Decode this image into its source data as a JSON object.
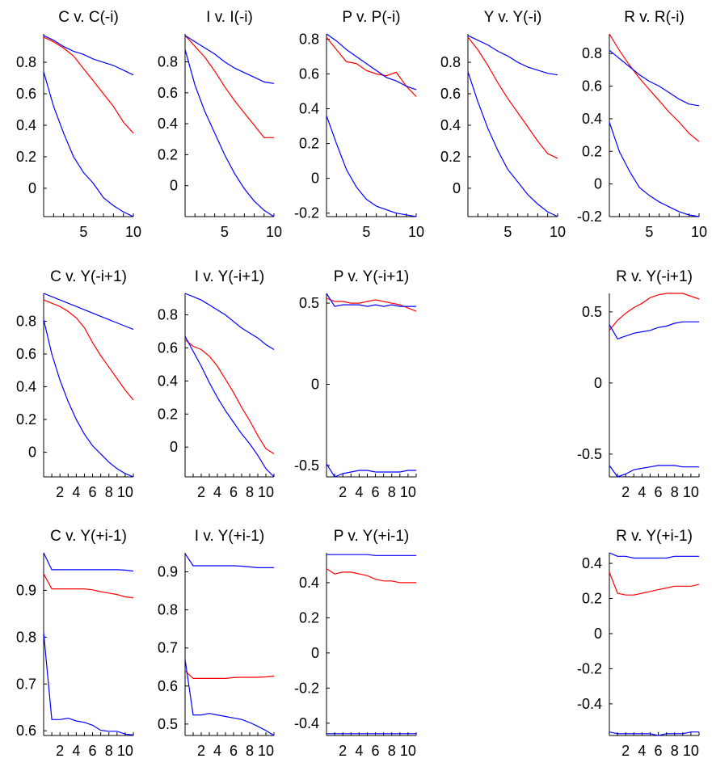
{
  "colors": {
    "series_red": "#ff0000",
    "series_blue": "#0000ff",
    "axis": "#000000"
  },
  "chart_data": [
    {
      "type": "line",
      "title": "C v. C(-i)",
      "xlim": [
        1,
        10
      ],
      "xticks": [
        "5",
        "10"
      ],
      "ylim": [
        -0.18,
        0.98
      ],
      "yticks": [
        "0",
        "0.2",
        "0.4",
        "0.6",
        "0.8"
      ],
      "x": [
        1,
        2,
        3,
        4,
        5,
        6,
        7,
        8,
        9,
        10
      ],
      "series": [
        {
          "color": "#ff0000",
          "values": [
            0.96,
            0.93,
            0.89,
            0.84,
            0.76,
            0.68,
            0.6,
            0.52,
            0.42,
            0.35
          ]
        },
        {
          "color": "#0000ff",
          "values": [
            0.97,
            0.94,
            0.9,
            0.87,
            0.85,
            0.82,
            0.8,
            0.78,
            0.75,
            0.72
          ]
        },
        {
          "color": "#0000ff",
          "values": [
            0.74,
            0.52,
            0.35,
            0.2,
            0.1,
            0.03,
            -0.06,
            -0.11,
            -0.15,
            -0.18
          ]
        }
      ]
    },
    {
      "type": "line",
      "title": "I v. I(-i)",
      "xlim": [
        1,
        10
      ],
      "xticks": [
        "5",
        "10"
      ],
      "ylim": [
        -0.2,
        0.98
      ],
      "yticks": [
        "0",
        "0.2",
        "0.4",
        "0.6",
        "0.8"
      ],
      "x": [
        1,
        2,
        3,
        4,
        5,
        6,
        7,
        8,
        9,
        10
      ],
      "series": [
        {
          "color": "#ff0000",
          "values": [
            0.97,
            0.9,
            0.83,
            0.74,
            0.64,
            0.55,
            0.47,
            0.39,
            0.31,
            0.31
          ]
        },
        {
          "color": "#0000ff",
          "values": [
            0.97,
            0.93,
            0.89,
            0.85,
            0.8,
            0.76,
            0.73,
            0.7,
            0.67,
            0.66
          ]
        },
        {
          "color": "#0000ff",
          "values": [
            0.88,
            0.65,
            0.48,
            0.34,
            0.2,
            0.08,
            -0.02,
            -0.1,
            -0.16,
            -0.2
          ]
        }
      ]
    },
    {
      "type": "line",
      "title": "P v. P(-i)",
      "xlim": [
        1,
        10
      ],
      "xticks": [
        "5",
        "10"
      ],
      "ylim": [
        -0.22,
        0.83
      ],
      "yticks": [
        "-0.2",
        "0",
        "0.2",
        "0.4",
        "0.6",
        "0.8"
      ],
      "x": [
        1,
        2,
        3,
        4,
        5,
        6,
        7,
        8,
        9,
        10
      ],
      "series": [
        {
          "color": "#ff0000",
          "values": [
            0.81,
            0.74,
            0.67,
            0.66,
            0.62,
            0.6,
            0.59,
            0.61,
            0.53,
            0.47
          ]
        },
        {
          "color": "#0000ff",
          "values": [
            0.83,
            0.79,
            0.74,
            0.7,
            0.66,
            0.62,
            0.58,
            0.56,
            0.53,
            0.51
          ]
        },
        {
          "color": "#0000ff",
          "values": [
            0.36,
            0.2,
            0.05,
            -0.05,
            -0.12,
            -0.16,
            -0.18,
            -0.2,
            -0.21,
            -0.22
          ]
        }
      ]
    },
    {
      "type": "line",
      "title": "Y v. Y(-i)",
      "xlim": [
        1,
        10
      ],
      "xticks": [
        "5",
        "10"
      ],
      "ylim": [
        -0.18,
        0.98
      ],
      "yticks": [
        "0",
        "0.2",
        "0.4",
        "0.6",
        "0.8"
      ],
      "x": [
        1,
        2,
        3,
        4,
        5,
        6,
        7,
        8,
        9,
        10
      ],
      "series": [
        {
          "color": "#ff0000",
          "values": [
            0.96,
            0.88,
            0.78,
            0.67,
            0.57,
            0.48,
            0.39,
            0.3,
            0.22,
            0.19
          ]
        },
        {
          "color": "#0000ff",
          "values": [
            0.97,
            0.94,
            0.91,
            0.87,
            0.84,
            0.8,
            0.77,
            0.75,
            0.73,
            0.72
          ]
        },
        {
          "color": "#0000ff",
          "values": [
            0.74,
            0.55,
            0.38,
            0.24,
            0.12,
            0.04,
            -0.04,
            -0.1,
            -0.15,
            -0.18
          ]
        }
      ]
    },
    {
      "type": "line",
      "title": "R v. R(-i)",
      "xlim": [
        1,
        10
      ],
      "xticks": [
        "5",
        "10"
      ],
      "ylim": [
        -0.2,
        0.92
      ],
      "yticks": [
        "-0.2",
        "0",
        "0.2",
        "0.4",
        "0.6",
        "0.8"
      ],
      "x": [
        1,
        2,
        3,
        4,
        5,
        6,
        7,
        8,
        9,
        10
      ],
      "series": [
        {
          "color": "#ff0000",
          "values": [
            0.92,
            0.82,
            0.73,
            0.65,
            0.58,
            0.51,
            0.44,
            0.38,
            0.31,
            0.26
          ]
        },
        {
          "color": "#0000ff",
          "values": [
            0.82,
            0.77,
            0.72,
            0.67,
            0.63,
            0.6,
            0.56,
            0.52,
            0.49,
            0.48
          ]
        },
        {
          "color": "#0000ff",
          "values": [
            0.38,
            0.2,
            0.08,
            -0.02,
            -0.07,
            -0.11,
            -0.14,
            -0.17,
            -0.19,
            -0.2
          ]
        }
      ]
    },
    {
      "type": "line",
      "title": "C v. Y(-i+1)",
      "xlim": [
        0,
        11
      ],
      "xticks": [
        "2",
        "4",
        "6",
        "8",
        "10"
      ],
      "ylim": [
        -0.15,
        0.97
      ],
      "yticks": [
        "0",
        "0.2",
        "0.4",
        "0.6",
        "0.8"
      ],
      "x": [
        0,
        1,
        2,
        3,
        4,
        5,
        6,
        7,
        8,
        9,
        10,
        11
      ],
      "series": [
        {
          "color": "#ff0000",
          "values": [
            0.93,
            0.91,
            0.89,
            0.86,
            0.82,
            0.76,
            0.67,
            0.59,
            0.52,
            0.45,
            0.38,
            0.32
          ]
        },
        {
          "color": "#0000ff",
          "values": [
            0.97,
            0.95,
            0.93,
            0.91,
            0.89,
            0.87,
            0.85,
            0.83,
            0.81,
            0.79,
            0.77,
            0.75
          ]
        },
        {
          "color": "#0000ff",
          "values": [
            0.81,
            0.6,
            0.44,
            0.31,
            0.2,
            0.11,
            0.04,
            -0.01,
            -0.06,
            -0.1,
            -0.13,
            -0.15
          ]
        }
      ]
    },
    {
      "type": "line",
      "title": "I v. Y(-i+1)",
      "xlim": [
        0,
        11
      ],
      "xticks": [
        "2",
        "4",
        "6",
        "8",
        "10"
      ],
      "ylim": [
        -0.18,
        0.93
      ],
      "yticks": [
        "0",
        "0.2",
        "0.4",
        "0.6",
        "0.8"
      ],
      "x": [
        0,
        1,
        2,
        3,
        4,
        5,
        6,
        7,
        8,
        9,
        10,
        11
      ],
      "series": [
        {
          "color": "#ff0000",
          "values": [
            0.65,
            0.61,
            0.59,
            0.55,
            0.49,
            0.41,
            0.33,
            0.24,
            0.16,
            0.07,
            -0.01,
            -0.04
          ]
        },
        {
          "color": "#0000ff",
          "values": [
            0.93,
            0.91,
            0.89,
            0.86,
            0.83,
            0.8,
            0.76,
            0.72,
            0.69,
            0.66,
            0.62,
            0.59
          ]
        },
        {
          "color": "#0000ff",
          "values": [
            0.67,
            0.58,
            0.49,
            0.39,
            0.3,
            0.22,
            0.15,
            0.08,
            0.02,
            -0.05,
            -0.13,
            -0.18
          ]
        }
      ]
    },
    {
      "type": "line",
      "title": "P v. Y(-i+1)",
      "xlim": [
        0,
        11
      ],
      "xticks": [
        "2",
        "4",
        "6",
        "8",
        "10"
      ],
      "ylim": [
        -0.57,
        0.56
      ],
      "yticks": [
        "-0.5",
        "0",
        "0.5"
      ],
      "x": [
        0,
        1,
        2,
        3,
        4,
        5,
        6,
        7,
        8,
        9,
        10,
        11
      ],
      "series": [
        {
          "color": "#ff0000",
          "values": [
            0.53,
            0.51,
            0.51,
            0.5,
            0.5,
            0.51,
            0.52,
            0.51,
            0.5,
            0.49,
            0.47,
            0.45
          ]
        },
        {
          "color": "#0000ff",
          "values": [
            0.56,
            0.48,
            0.49,
            0.49,
            0.49,
            0.48,
            0.49,
            0.48,
            0.49,
            0.48,
            0.48,
            0.48
          ]
        },
        {
          "color": "#0000ff",
          "values": [
            -0.49,
            -0.57,
            -0.55,
            -0.54,
            -0.53,
            -0.53,
            -0.54,
            -0.54,
            -0.54,
            -0.54,
            -0.53,
            -0.53
          ]
        }
      ]
    },
    {
      "type": "line",
      "title": "R v. Y(-i+1)",
      "xlim": [
        0,
        11
      ],
      "xticks": [
        "2",
        "4",
        "6",
        "8",
        "10"
      ],
      "ylim": [
        -0.66,
        0.63
      ],
      "yticks": [
        "-0.5",
        "0",
        "0.5"
      ],
      "x": [
        0,
        1,
        2,
        3,
        4,
        5,
        6,
        7,
        8,
        9,
        10,
        11
      ],
      "series": [
        {
          "color": "#ff0000",
          "values": [
            0.37,
            0.44,
            0.49,
            0.53,
            0.56,
            0.6,
            0.62,
            0.63,
            0.63,
            0.63,
            0.61,
            0.59
          ]
        },
        {
          "color": "#0000ff",
          "values": [
            0.41,
            0.31,
            0.33,
            0.35,
            0.36,
            0.37,
            0.39,
            0.4,
            0.42,
            0.43,
            0.43,
            0.43
          ]
        },
        {
          "color": "#0000ff",
          "values": [
            -0.58,
            -0.66,
            -0.64,
            -0.61,
            -0.6,
            -0.59,
            -0.58,
            -0.58,
            -0.58,
            -0.59,
            -0.59,
            -0.59
          ]
        }
      ]
    },
    {
      "type": "line",
      "title": "C v. Y(+i-1)",
      "xlim": [
        0,
        11
      ],
      "xticks": [
        "2",
        "4",
        "6",
        "8",
        "10"
      ],
      "ylim": [
        0.59,
        0.98
      ],
      "yticks": [
        "0.6",
        "0.7",
        "0.8",
        "0.9"
      ],
      "x": [
        0,
        1,
        2,
        3,
        4,
        5,
        6,
        7,
        8,
        9,
        10,
        11
      ],
      "series": [
        {
          "color": "#ff0000",
          "values": [
            0.935,
            0.903,
            0.903,
            0.903,
            0.903,
            0.903,
            0.901,
            0.897,
            0.894,
            0.891,
            0.886,
            0.884
          ]
        },
        {
          "color": "#0000ff",
          "values": [
            0.98,
            0.944,
            0.944,
            0.944,
            0.944,
            0.944,
            0.944,
            0.944,
            0.944,
            0.944,
            0.943,
            0.941
          ]
        },
        {
          "color": "#0000ff",
          "values": [
            0.81,
            0.624,
            0.624,
            0.627,
            0.621,
            0.618,
            0.612,
            0.601,
            0.599,
            0.599,
            0.593,
            0.591
          ]
        }
      ]
    },
    {
      "type": "line",
      "title": "I v. Y(+i-1)",
      "xlim": [
        0,
        11
      ],
      "xticks": [
        "2",
        "4",
        "6",
        "8",
        "10"
      ],
      "ylim": [
        0.47,
        0.95
      ],
      "yticks": [
        "0.5",
        "0.6",
        "0.7",
        "0.8",
        "0.9"
      ],
      "x": [
        0,
        1,
        2,
        3,
        4,
        5,
        6,
        7,
        8,
        9,
        10,
        11
      ],
      "series": [
        {
          "color": "#ff0000",
          "values": [
            0.64,
            0.62,
            0.62,
            0.62,
            0.62,
            0.62,
            0.622,
            0.623,
            0.623,
            0.623,
            0.624,
            0.626
          ]
        },
        {
          "color": "#0000ff",
          "values": [
            0.948,
            0.916,
            0.916,
            0.916,
            0.916,
            0.916,
            0.916,
            0.915,
            0.913,
            0.911,
            0.911,
            0.911
          ]
        },
        {
          "color": "#0000ff",
          "values": [
            0.67,
            0.524,
            0.524,
            0.528,
            0.524,
            0.52,
            0.516,
            0.512,
            0.504,
            0.494,
            0.483,
            0.47
          ]
        }
      ]
    },
    {
      "type": "line",
      "title": "P v. Y(+i-1)",
      "xlim": [
        0,
        11
      ],
      "xticks": [
        "2",
        "4",
        "6",
        "8",
        "10"
      ],
      "ylim": [
        -0.47,
        0.57
      ],
      "yticks": [
        "-0.4",
        "-0.2",
        "0",
        "0.2",
        "0.4"
      ],
      "x": [
        0,
        1,
        2,
        3,
        4,
        5,
        6,
        7,
        8,
        9,
        10,
        11
      ],
      "series": [
        {
          "color": "#ff0000",
          "values": [
            0.48,
            0.45,
            0.46,
            0.46,
            0.45,
            0.44,
            0.42,
            0.41,
            0.41,
            0.4,
            0.4,
            0.4
          ]
        },
        {
          "color": "#0000ff",
          "values": [
            0.56,
            0.56,
            0.56,
            0.56,
            0.56,
            0.56,
            0.555,
            0.555,
            0.555,
            0.555,
            0.555,
            0.555
          ]
        },
        {
          "color": "#0000ff",
          "values": [
            -0.46,
            -0.46,
            -0.46,
            -0.46,
            -0.46,
            -0.46,
            -0.46,
            -0.46,
            -0.46,
            -0.46,
            -0.46,
            -0.46
          ]
        }
      ]
    },
    {
      "type": "line",
      "title": "R v. Y(+i-1)",
      "xlim": [
        0,
        11
      ],
      "xticks": [
        "2",
        "4",
        "6",
        "8",
        "10"
      ],
      "ylim": [
        -0.58,
        0.46
      ],
      "yticks": [
        "-0.4",
        "-0.2",
        "0",
        "0.2",
        "0.4"
      ],
      "x": [
        0,
        1,
        2,
        3,
        4,
        5,
        6,
        7,
        8,
        9,
        10,
        11
      ],
      "series": [
        {
          "color": "#ff0000",
          "values": [
            0.35,
            0.23,
            0.22,
            0.22,
            0.23,
            0.24,
            0.25,
            0.26,
            0.27,
            0.27,
            0.27,
            0.28
          ]
        },
        {
          "color": "#0000ff",
          "values": [
            0.46,
            0.44,
            0.44,
            0.43,
            0.43,
            0.43,
            0.43,
            0.43,
            0.44,
            0.44,
            0.44,
            0.44
          ]
        },
        {
          "color": "#0000ff",
          "values": [
            -0.56,
            -0.57,
            -0.57,
            -0.57,
            -0.57,
            -0.57,
            -0.58,
            -0.57,
            -0.57,
            -0.57,
            -0.56,
            -0.56
          ]
        }
      ]
    }
  ]
}
